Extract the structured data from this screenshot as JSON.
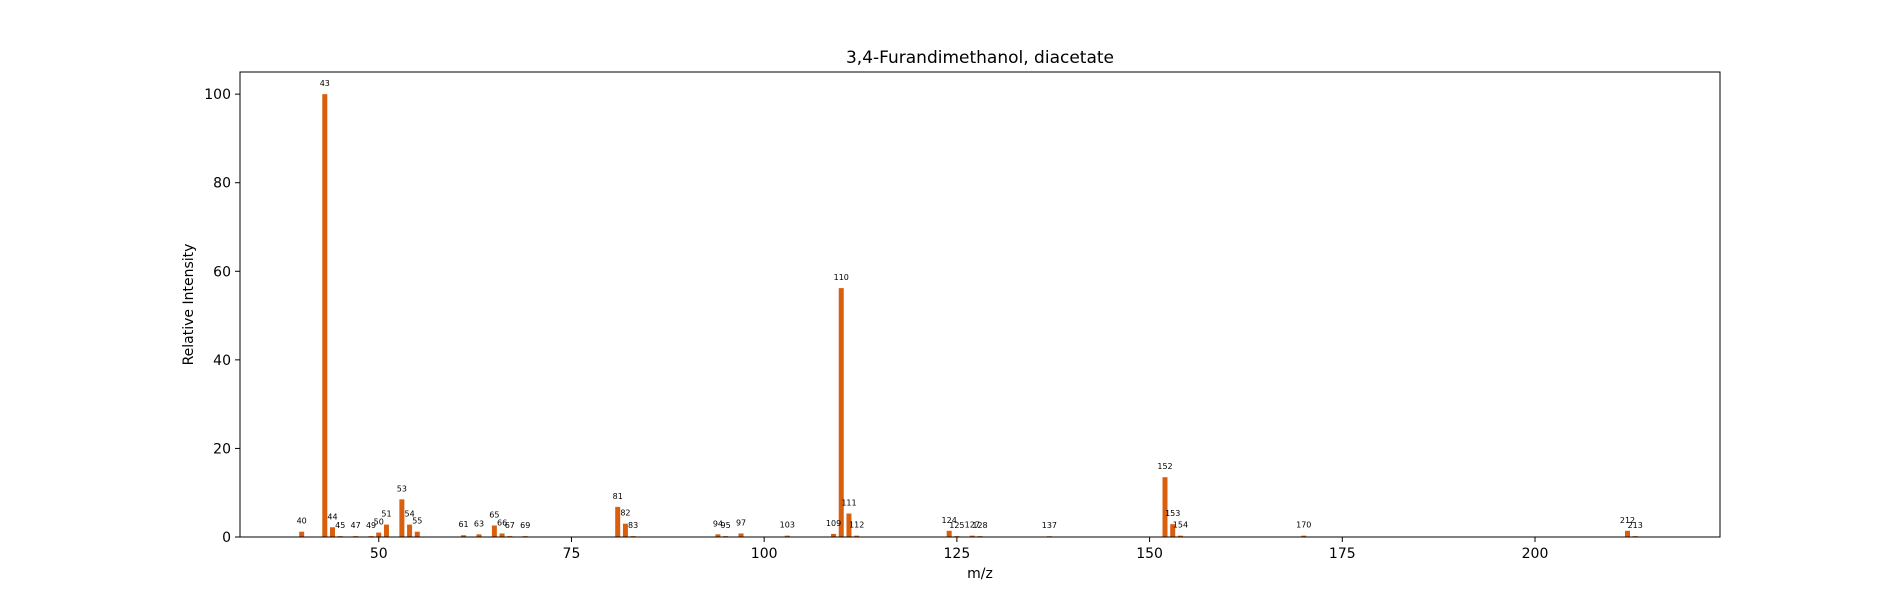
{
  "chart_data": {
    "type": "bar",
    "title": "3,4-Furandimethanol, diacetate",
    "xlabel": "m/z",
    "ylabel": "Relative Intensity",
    "xlim": [
      32,
      224
    ],
    "ylim": [
      0,
      105
    ],
    "xticks": [
      50,
      75,
      100,
      125,
      150,
      175,
      200
    ],
    "yticks": [
      0,
      20,
      40,
      60,
      80,
      100
    ],
    "grid": false,
    "bar_color": "#d95f0e",
    "peaks": [
      {
        "mz": 40,
        "intensity": 1.2
      },
      {
        "mz": 43,
        "intensity": 100
      },
      {
        "mz": 44,
        "intensity": 2.2
      },
      {
        "mz": 45,
        "intensity": 0.2
      },
      {
        "mz": 47,
        "intensity": 0.2
      },
      {
        "mz": 49,
        "intensity": 0.2
      },
      {
        "mz": 50,
        "intensity": 1.0
      },
      {
        "mz": 51,
        "intensity": 2.8
      },
      {
        "mz": 53,
        "intensity": 8.5
      },
      {
        "mz": 54,
        "intensity": 2.8
      },
      {
        "mz": 55,
        "intensity": 1.2
      },
      {
        "mz": 61,
        "intensity": 0.4
      },
      {
        "mz": 63,
        "intensity": 0.6
      },
      {
        "mz": 65,
        "intensity": 2.6
      },
      {
        "mz": 66,
        "intensity": 0.8
      },
      {
        "mz": 67,
        "intensity": 0.2
      },
      {
        "mz": 69,
        "intensity": 0.2
      },
      {
        "mz": 81,
        "intensity": 6.8
      },
      {
        "mz": 82,
        "intensity": 3.0
      },
      {
        "mz": 83,
        "intensity": 0.2
      },
      {
        "mz": 94,
        "intensity": 0.6
      },
      {
        "mz": 95,
        "intensity": 0.2
      },
      {
        "mz": 97,
        "intensity": 0.8
      },
      {
        "mz": 103,
        "intensity": 0.3
      },
      {
        "mz": 109,
        "intensity": 0.7
      },
      {
        "mz": 110,
        "intensity": 56.2
      },
      {
        "mz": 111,
        "intensity": 5.3
      },
      {
        "mz": 112,
        "intensity": 0.3
      },
      {
        "mz": 124,
        "intensity": 1.4
      },
      {
        "mz": 125,
        "intensity": 0.2
      },
      {
        "mz": 127,
        "intensity": 0.3
      },
      {
        "mz": 128,
        "intensity": 0.2
      },
      {
        "mz": 137,
        "intensity": 0.1
      },
      {
        "mz": 152,
        "intensity": 13.5
      },
      {
        "mz": 153,
        "intensity": 2.9
      },
      {
        "mz": 154,
        "intensity": 0.3
      },
      {
        "mz": 170,
        "intensity": 0.3
      },
      {
        "mz": 212,
        "intensity": 1.4
      },
      {
        "mz": 213,
        "intensity": 0.2
      }
    ]
  }
}
